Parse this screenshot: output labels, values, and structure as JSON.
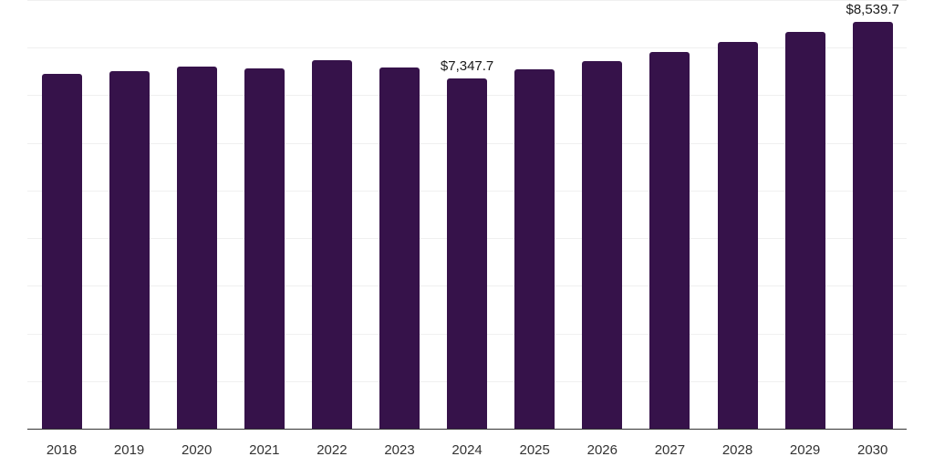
{
  "chart_data": {
    "type": "bar",
    "title": "",
    "xlabel": "",
    "ylabel": "",
    "categories": [
      "2018",
      "2019",
      "2020",
      "2021",
      "2022",
      "2023",
      "2024",
      "2025",
      "2026",
      "2027",
      "2028",
      "2029",
      "2030"
    ],
    "values": [
      7440,
      7505,
      7600,
      7560,
      7735,
      7580,
      7347.7,
      7540,
      7715,
      7905,
      8115,
      8330,
      8539.7
    ],
    "data_labels": [
      {
        "category": "2024",
        "text": "$7,347.7"
      },
      {
        "category": "2030",
        "text": "$8,539.7"
      }
    ],
    "ylim": [
      0,
      9000
    ],
    "y_grid_step": 1000,
    "grid": true,
    "y_tick_labels_visible": false,
    "legend": null,
    "bar_color": "#36124a"
  }
}
